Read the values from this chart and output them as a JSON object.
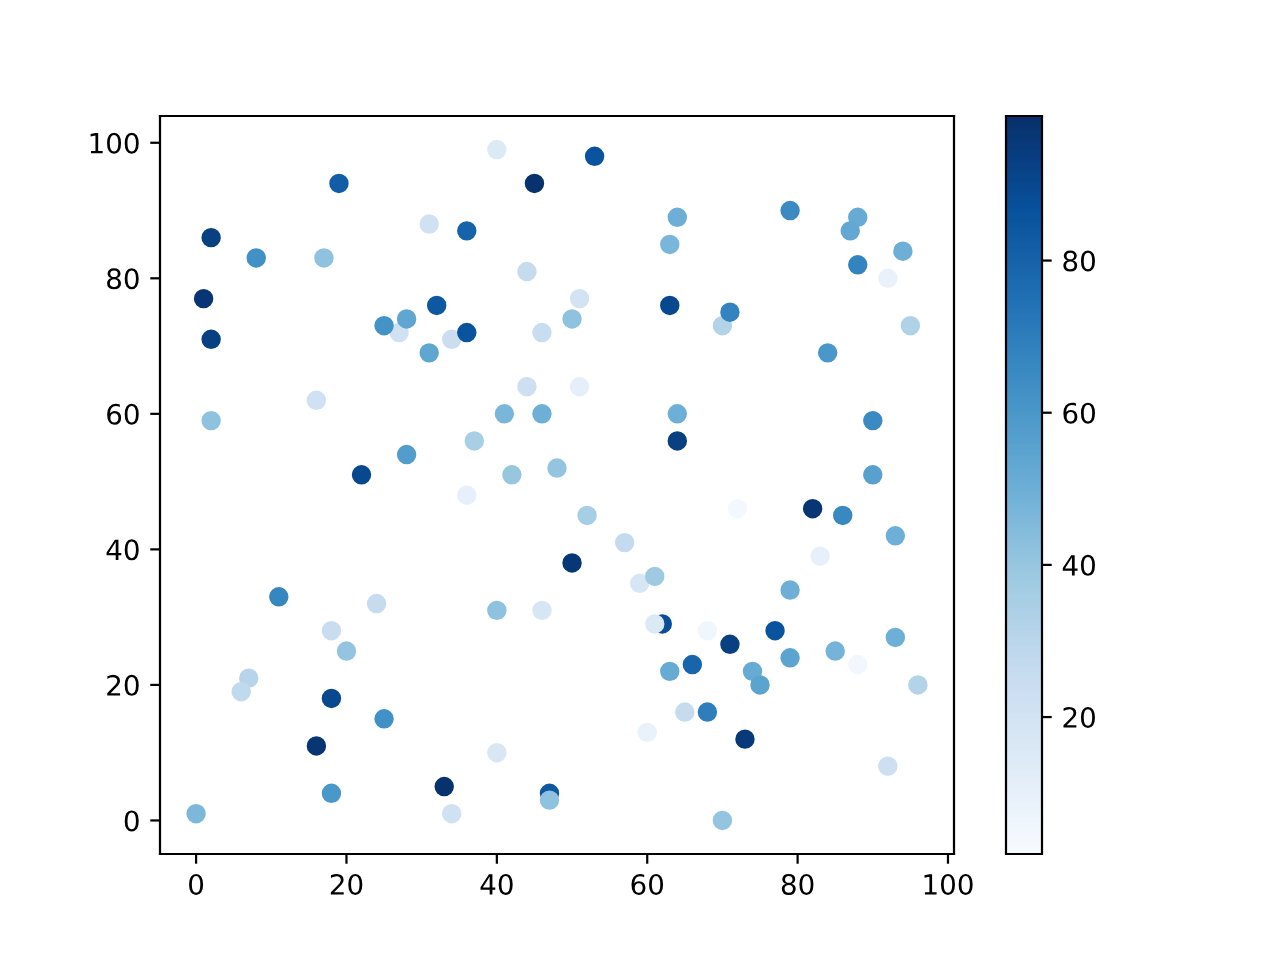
{
  "chart_data": {
    "type": "scatter",
    "marker": "circle",
    "x": [
      2,
      1,
      2,
      2,
      8,
      17,
      19,
      16,
      22,
      27,
      25,
      28,
      31,
      31,
      32,
      34,
      36,
      36,
      28,
      37,
      36,
      40,
      41,
      42,
      44,
      44,
      45,
      46,
      46,
      53,
      64,
      63,
      79,
      88,
      87,
      94,
      88,
      92,
      51,
      50,
      63,
      70,
      71,
      95,
      84,
      51,
      64,
      64,
      90,
      90,
      48,
      11,
      24,
      18,
      20,
      7,
      6,
      18,
      25,
      16,
      40,
      18,
      33,
      34,
      0,
      40,
      46,
      52,
      57,
      50,
      59,
      61,
      62,
      61,
      72,
      82,
      86,
      93,
      83,
      79,
      68,
      71,
      77,
      66,
      63,
      74,
      75,
      79,
      85,
      88,
      93,
      96,
      65,
      68,
      60,
      73,
      92,
      47,
      47,
      70
    ],
    "values": [
      86,
      77,
      71,
      59,
      83,
      83,
      94,
      62,
      51,
      72,
      73,
      74,
      88,
      69,
      76,
      71,
      87,
      72,
      54,
      56,
      48,
      99,
      60,
      51,
      81,
      64,
      94,
      72,
      60,
      98,
      89,
      85,
      90,
      89,
      87,
      84,
      82,
      80,
      77,
      74,
      76,
      73,
      75,
      73,
      69,
      64,
      60,
      56,
      59,
      51,
      52,
      33,
      32,
      28,
      25,
      21,
      19,
      18,
      15,
      11,
      10,
      4,
      5,
      1,
      1,
      31,
      31,
      45,
      41,
      38,
      35,
      36,
      29,
      29,
      46,
      46,
      45,
      42,
      39,
      34,
      28,
      26,
      28,
      23,
      22,
      22,
      20,
      24,
      25,
      23,
      27,
      20,
      16,
      16,
      13,
      12,
      8,
      4,
      3,
      0
    ],
    "cvalues": [
      93,
      97,
      93,
      42,
      63,
      42,
      82,
      22,
      90,
      22,
      62,
      54,
      22,
      54,
      84,
      24,
      80,
      86,
      58,
      35,
      10,
      15,
      47,
      40,
      26,
      23,
      98,
      25,
      50,
      86,
      50,
      47,
      65,
      52,
      53,
      50,
      68,
      9,
      20,
      42,
      90,
      32,
      68,
      33,
      60,
      11,
      50,
      93,
      65,
      56,
      41,
      67,
      26,
      25,
      41,
      31,
      28,
      90,
      63,
      97,
      17,
      60,
      98,
      22,
      46,
      42,
      18,
      36,
      27,
      96,
      18,
      38,
      88,
      16,
      4,
      97,
      66,
      50,
      10,
      50,
      6,
      93,
      86,
      79,
      52,
      52,
      55,
      55,
      48,
      5,
      50,
      32,
      26,
      70,
      9,
      95,
      23,
      84,
      42,
      41
    ],
    "clim": [
      2,
      99
    ],
    "cticks": [
      20,
      40,
      60,
      80
    ],
    "xlim": [
      -4.8,
      100.8
    ],
    "ylim": [
      -4.95,
      103.95
    ],
    "xticks": [
      0,
      20,
      40,
      60,
      80,
      100
    ],
    "yticks": [
      0,
      20,
      40,
      60,
      80,
      100
    ]
  }
}
